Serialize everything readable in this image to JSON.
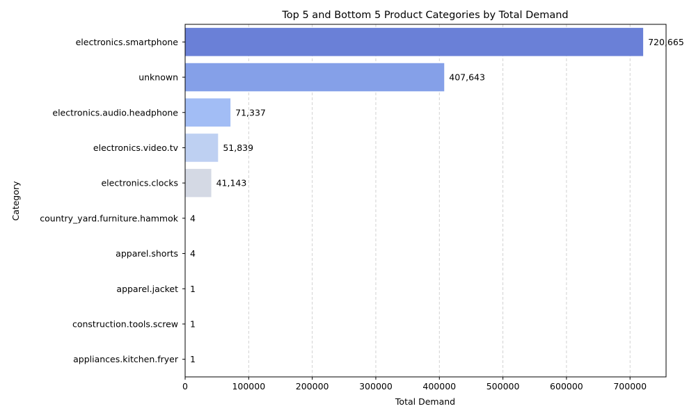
{
  "chart_data": {
    "type": "bar",
    "orientation": "horizontal",
    "title": "Top 5 and Bottom 5 Product Categories by Total Demand",
    "xlabel": "Total Demand",
    "ylabel": "Category",
    "categories": [
      "electronics.smartphone",
      "unknown",
      "electronics.audio.headphone",
      "electronics.video.tv",
      "electronics.clocks",
      "country_yard.furniture.hammok",
      "apparel.shorts",
      "apparel.jacket",
      "construction.tools.screw",
      "appliances.kitchen.fryer"
    ],
    "values": [
      720665,
      407643,
      71337,
      51839,
      41143,
      4,
      4,
      1,
      1,
      1
    ],
    "value_labels": [
      "720,665",
      "407,643",
      "71,337",
      "51,839",
      "41,143",
      "4",
      "4",
      "1",
      "1",
      "1"
    ],
    "colors": [
      "#6a80d7",
      "#85a0e8",
      "#a2bdf5",
      "#bed0f2",
      "#d4d9e4",
      "#d5d8e0",
      "#e4cfc4",
      "#f1bfaa",
      "#f5a88d",
      "#ef8e71"
    ],
    "xlim": [
      0,
      756698
    ],
    "xticks": [
      0,
      100000,
      200000,
      300000,
      400000,
      500000,
      600000,
      700000
    ],
    "xtick_labels": [
      "0",
      "100000",
      "200000",
      "300000",
      "400000",
      "500000",
      "600000",
      "700000"
    ],
    "grid": "x-dashed"
  }
}
